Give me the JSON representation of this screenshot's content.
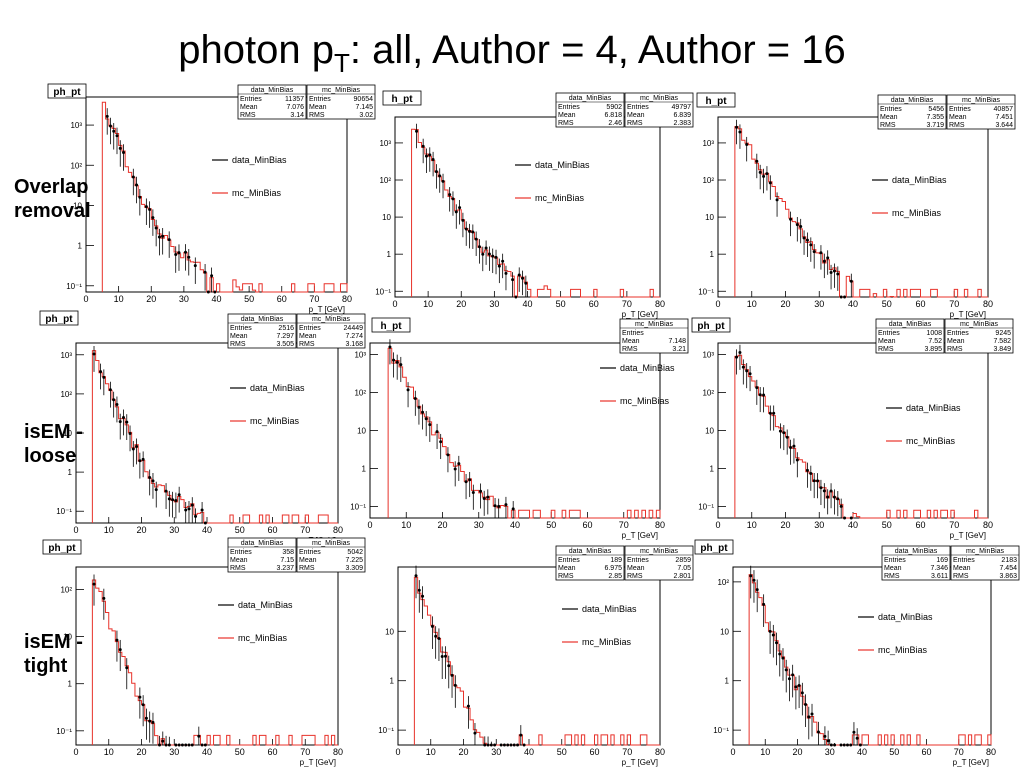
{
  "title": {
    "text": "photon p",
    "sub": "T",
    "rest": ": all, Author = 4, Author = 16"
  },
  "row_labels": [
    {
      "line1": "Overlap",
      "line2": "removal"
    },
    {
      "line1": "isEM -",
      "line2": "loose"
    },
    {
      "line1": "isEM -",
      "line2": "tight"
    }
  ],
  "chart_data": [
    {
      "type": "line",
      "title": "ph_pt",
      "xlabel": "p_T [GeV]",
      "xlim": [
        0,
        80
      ],
      "ylog": true,
      "ylim": [
        0.07,
        5000
      ],
      "yticks": [
        0.1,
        1,
        10,
        100,
        1000
      ],
      "legend": [
        "data_MinBias",
        "mc_MinBias"
      ],
      "stats": {
        "data_MinBias": {
          "Entries": "11357",
          "Mean": "7.076",
          "RMS": "3.14"
        },
        "mc_MinBias": {
          "Entries": "90654",
          "Mean": "7.145",
          "RMS": "3.02"
        }
      }
    },
    {
      "type": "line",
      "title": "h_pt",
      "xlabel": "p_T [GeV]",
      "xlim": [
        0,
        80
      ],
      "ylog": true,
      "ylim": [
        0.07,
        5000
      ],
      "yticks": [
        0.1,
        1,
        10,
        100,
        1000
      ],
      "legend": [
        "data_MinBias",
        "mc_MinBias"
      ],
      "stats": {
        "data_MinBias": {
          "Entries": "5902",
          "Mean": "6.818",
          "RMS": "2.46"
        },
        "mc_MinBias": {
          "Entries": "49797",
          "Mean": "6.839",
          "RMS": "2.383"
        }
      }
    },
    {
      "type": "line",
      "title": "h_pt",
      "xlabel": "p_T [GeV]",
      "xlim": [
        0,
        80
      ],
      "ylog": true,
      "ylim": [
        0.07,
        5000
      ],
      "yticks": [
        0.1,
        1,
        10,
        100,
        1000
      ],
      "legend": [
        "data_MinBias",
        "mc_MinBias"
      ],
      "stats": {
        "data_MinBias": {
          "Entries": "5456",
          "Mean": "7.355",
          "RMS": "3.719"
        },
        "mc_MinBias": {
          "Entries": "40857",
          "Mean": "7.451",
          "RMS": "3.644"
        }
      }
    },
    {
      "type": "line",
      "title": "ph_pt",
      "xlabel": "p_T [GeV]",
      "xlim": [
        0,
        80
      ],
      "ylog": true,
      "ylim": [
        0.05,
        2000
      ],
      "yticks": [
        0.1,
        1,
        10,
        100,
        1000
      ],
      "legend": [
        "data_MinBias",
        "mc_MinBias"
      ],
      "stats": {
        "data_MinBias": {
          "Entries": "2516",
          "Mean": "7.297",
          "RMS": "3.505"
        },
        "mc_MinBias": {
          "Entries": "24449",
          "Mean": "7.274",
          "RMS": "3.168"
        }
      }
    },
    {
      "type": "line",
      "title": "h_pt",
      "xlabel": "p_T [GeV]",
      "xlim": [
        0,
        80
      ],
      "ylog": true,
      "ylim": [
        0.05,
        2000
      ],
      "yticks": [
        0.1,
        1,
        10,
        100,
        1000
      ],
      "legend": [
        "data_MinBias",
        "mc_MinBias"
      ],
      "stats": {
        "mc_MinBias": {
          "Entries": "",
          "Mean": "7.148",
          "RMS": "3.21"
        }
      }
    },
    {
      "type": "line",
      "title": "ph_pt",
      "xlabel": "p_T [GeV]",
      "xlim": [
        0,
        80
      ],
      "ylog": true,
      "ylim": [
        0.05,
        2000
      ],
      "yticks": [
        0.1,
        1,
        10,
        100,
        1000
      ],
      "legend": [
        "data_MinBias",
        "mc_MinBias"
      ],
      "stats": {
        "data_MinBias": {
          "Entries": "1008",
          "Mean": "7.52",
          "RMS": "3.895"
        },
        "mc_MinBias": {
          "Entries": "9245",
          "Mean": "7.582",
          "RMS": "3.849"
        }
      }
    },
    {
      "type": "line",
      "title": "ph_pt",
      "xlabel": "p_T [GeV]",
      "xlim": [
        0,
        80
      ],
      "ylog": true,
      "ylim": [
        0.05,
        300
      ],
      "yticks": [
        0.1,
        1,
        10,
        100
      ],
      "legend": [
        "data_MinBias",
        "mc_MinBias"
      ],
      "stats": {
        "data_MinBias": {
          "Entries": "358",
          "Mean": "7.15",
          "RMS": "3.237"
        },
        "mc_MinBias": {
          "Entries": "5042",
          "Mean": "7.225",
          "RMS": "3.309"
        }
      }
    },
    {
      "type": "line",
      "title": "",
      "xlabel": "p_T [GeV]",
      "xlim": [
        0,
        80
      ],
      "ylog": true,
      "ylim": [
        0.05,
        200
      ],
      "yticks": [
        0.1,
        1,
        10
      ],
      "legend": [
        "data_MinBias",
        "mc_MinBias"
      ],
      "stats": {
        "data_MinBias": {
          "Entries": "189",
          "Mean": "6.975",
          "RMS": "2.85"
        },
        "mc_MinBias": {
          "Entries": "2859",
          "Mean": "7.05",
          "RMS": "2.801"
        }
      }
    },
    {
      "type": "line",
      "title": "ph_pt",
      "xlabel": "p_T [GeV]",
      "xlim": [
        0,
        80
      ],
      "ylog": true,
      "ylim": [
        0.05,
        200
      ],
      "yticks": [
        0.1,
        1,
        10,
        100
      ],
      "legend": [
        "data_MinBias",
        "mc_MinBias"
      ],
      "stats": {
        "data_MinBias": {
          "Entries": "169",
          "Mean": "7.346",
          "RMS": "3.611"
        },
        "mc_MinBias": {
          "Entries": "2183",
          "Mean": "7.454",
          "RMS": "3.863"
        }
      }
    }
  ]
}
